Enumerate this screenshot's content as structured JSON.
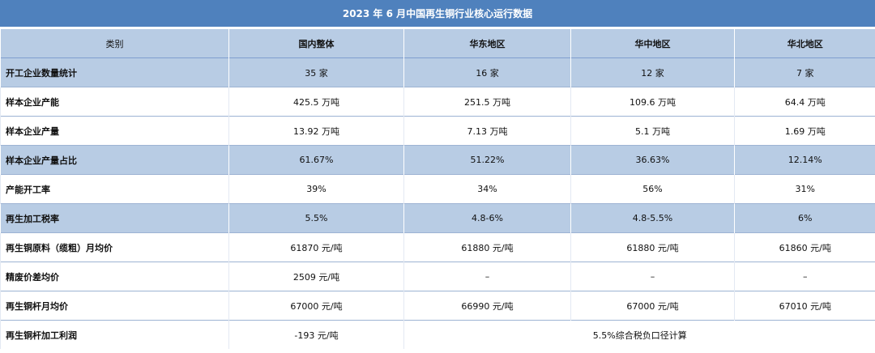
{
  "title": "2023 年 6 月中国再生铜行业核心运行数据",
  "headers": [
    "类别",
    "国内整体",
    "华东地区",
    "华中地区",
    "华北地区"
  ],
  "rows": [
    {
      "label": "开工企业数量统计",
      "cells": [
        "35 家",
        "16 家",
        "12 家",
        "7 家"
      ]
    },
    {
      "label": "样本企业产能",
      "cells": [
        "425.5 万吨",
        "251.5 万吨",
        "109.6 万吨",
        "64.4 万吨"
      ]
    },
    {
      "label": "样本企业产量",
      "cells": [
        "13.92 万吨",
        "7.13 万吨",
        "5.1 万吨",
        "1.69 万吨"
      ]
    },
    {
      "label": "样本企业产量占比",
      "cells": [
        "61.67%",
        "51.22%",
        "36.63%",
        "12.14%"
      ]
    },
    {
      "label": "产能开工率",
      "cells": [
        "39%",
        "34%",
        "56%",
        "31%"
      ]
    },
    {
      "label": "再生加工税率",
      "cells": [
        "5.5%",
        "4.8-6%",
        "4.8-5.5%",
        "6%"
      ]
    },
    {
      "label": "再生铜原料（缆粗）月均价",
      "cells": [
        "61870 元/吨",
        "61880 元/吨",
        "61880 元/吨",
        "61860 元/吨"
      ]
    },
    {
      "label": "精废价差均价",
      "cells": [
        "2509 元/吨",
        "–",
        "–",
        "–"
      ]
    },
    {
      "label": "再生铜杆月均价",
      "cells": [
        "67000 元/吨",
        "66990 元/吨",
        "67000 元/吨",
        "67010 元/吨"
      ]
    },
    {
      "label": "再生铜杆加工利润",
      "cells": [
        "-193 元/吨"
      ],
      "note": "5.5%综合税负口径计算"
    }
  ]
}
